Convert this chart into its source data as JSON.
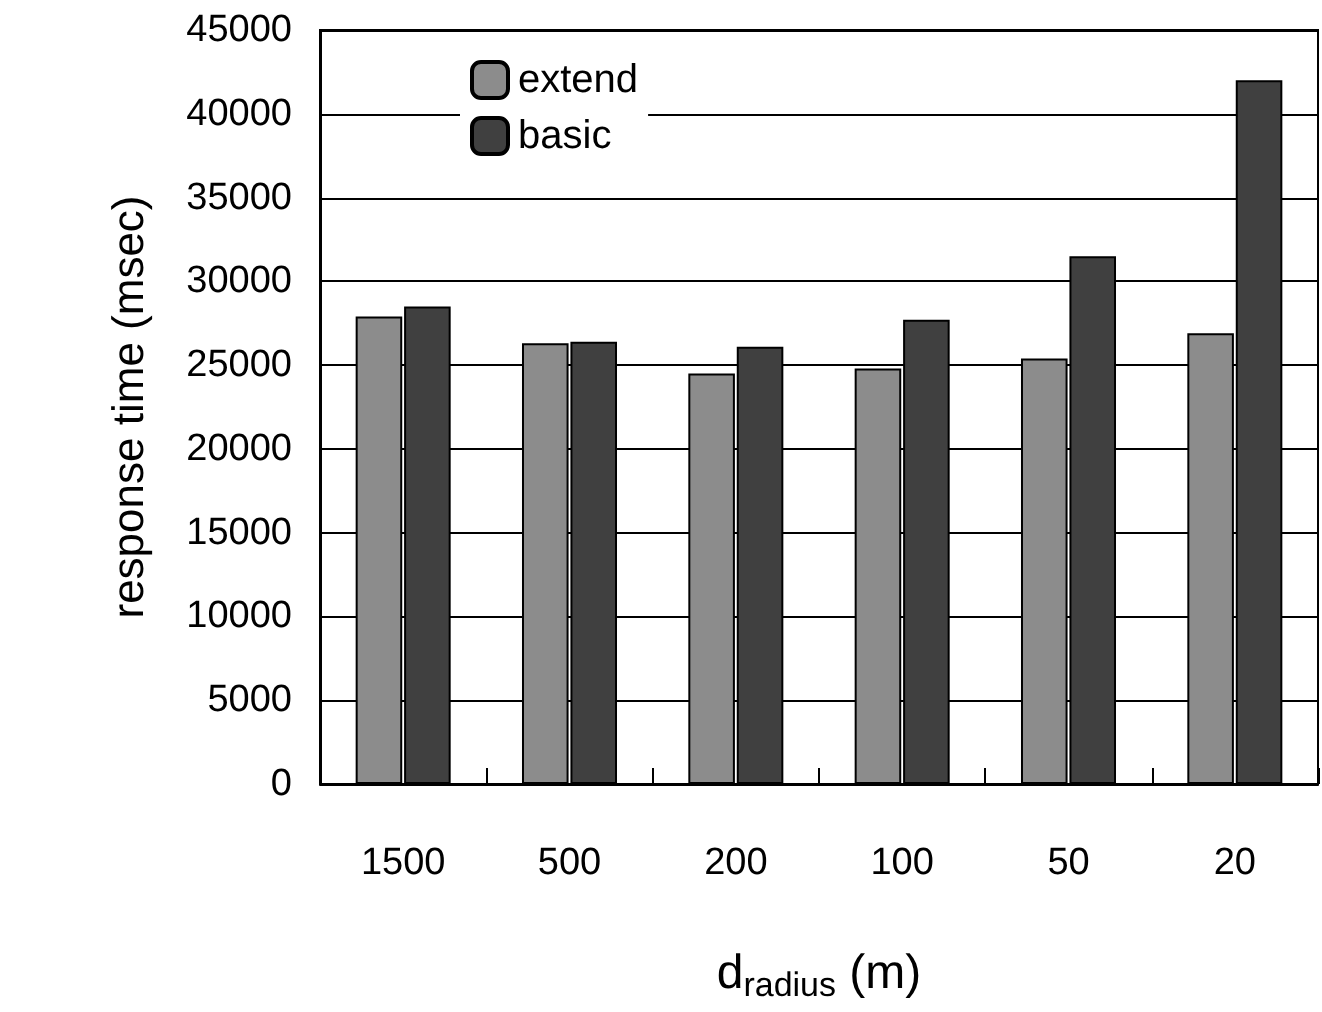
{
  "chart_data": {
    "type": "bar",
    "categories": [
      "1500",
      "500",
      "200",
      "100",
      "50",
      "20"
    ],
    "series": [
      {
        "name": "extend",
        "color": "#8c8c8c",
        "values": [
          27900,
          26300,
          24500,
          24800,
          25400,
          26900
        ]
      },
      {
        "name": "basic",
        "color": "#404040",
        "values": [
          28500,
          26400,
          26100,
          27700,
          31500,
          42000
        ]
      }
    ],
    "xlabel": "d$_{radius}$ (m)",
    "ylabel": "response time (msec)",
    "ylim": [
      0,
      45000
    ],
    "yticks": [
      0,
      5000,
      10000,
      15000,
      20000,
      25000,
      30000,
      35000,
      40000,
      45000
    ],
    "grid": "y",
    "legend": "top left"
  }
}
